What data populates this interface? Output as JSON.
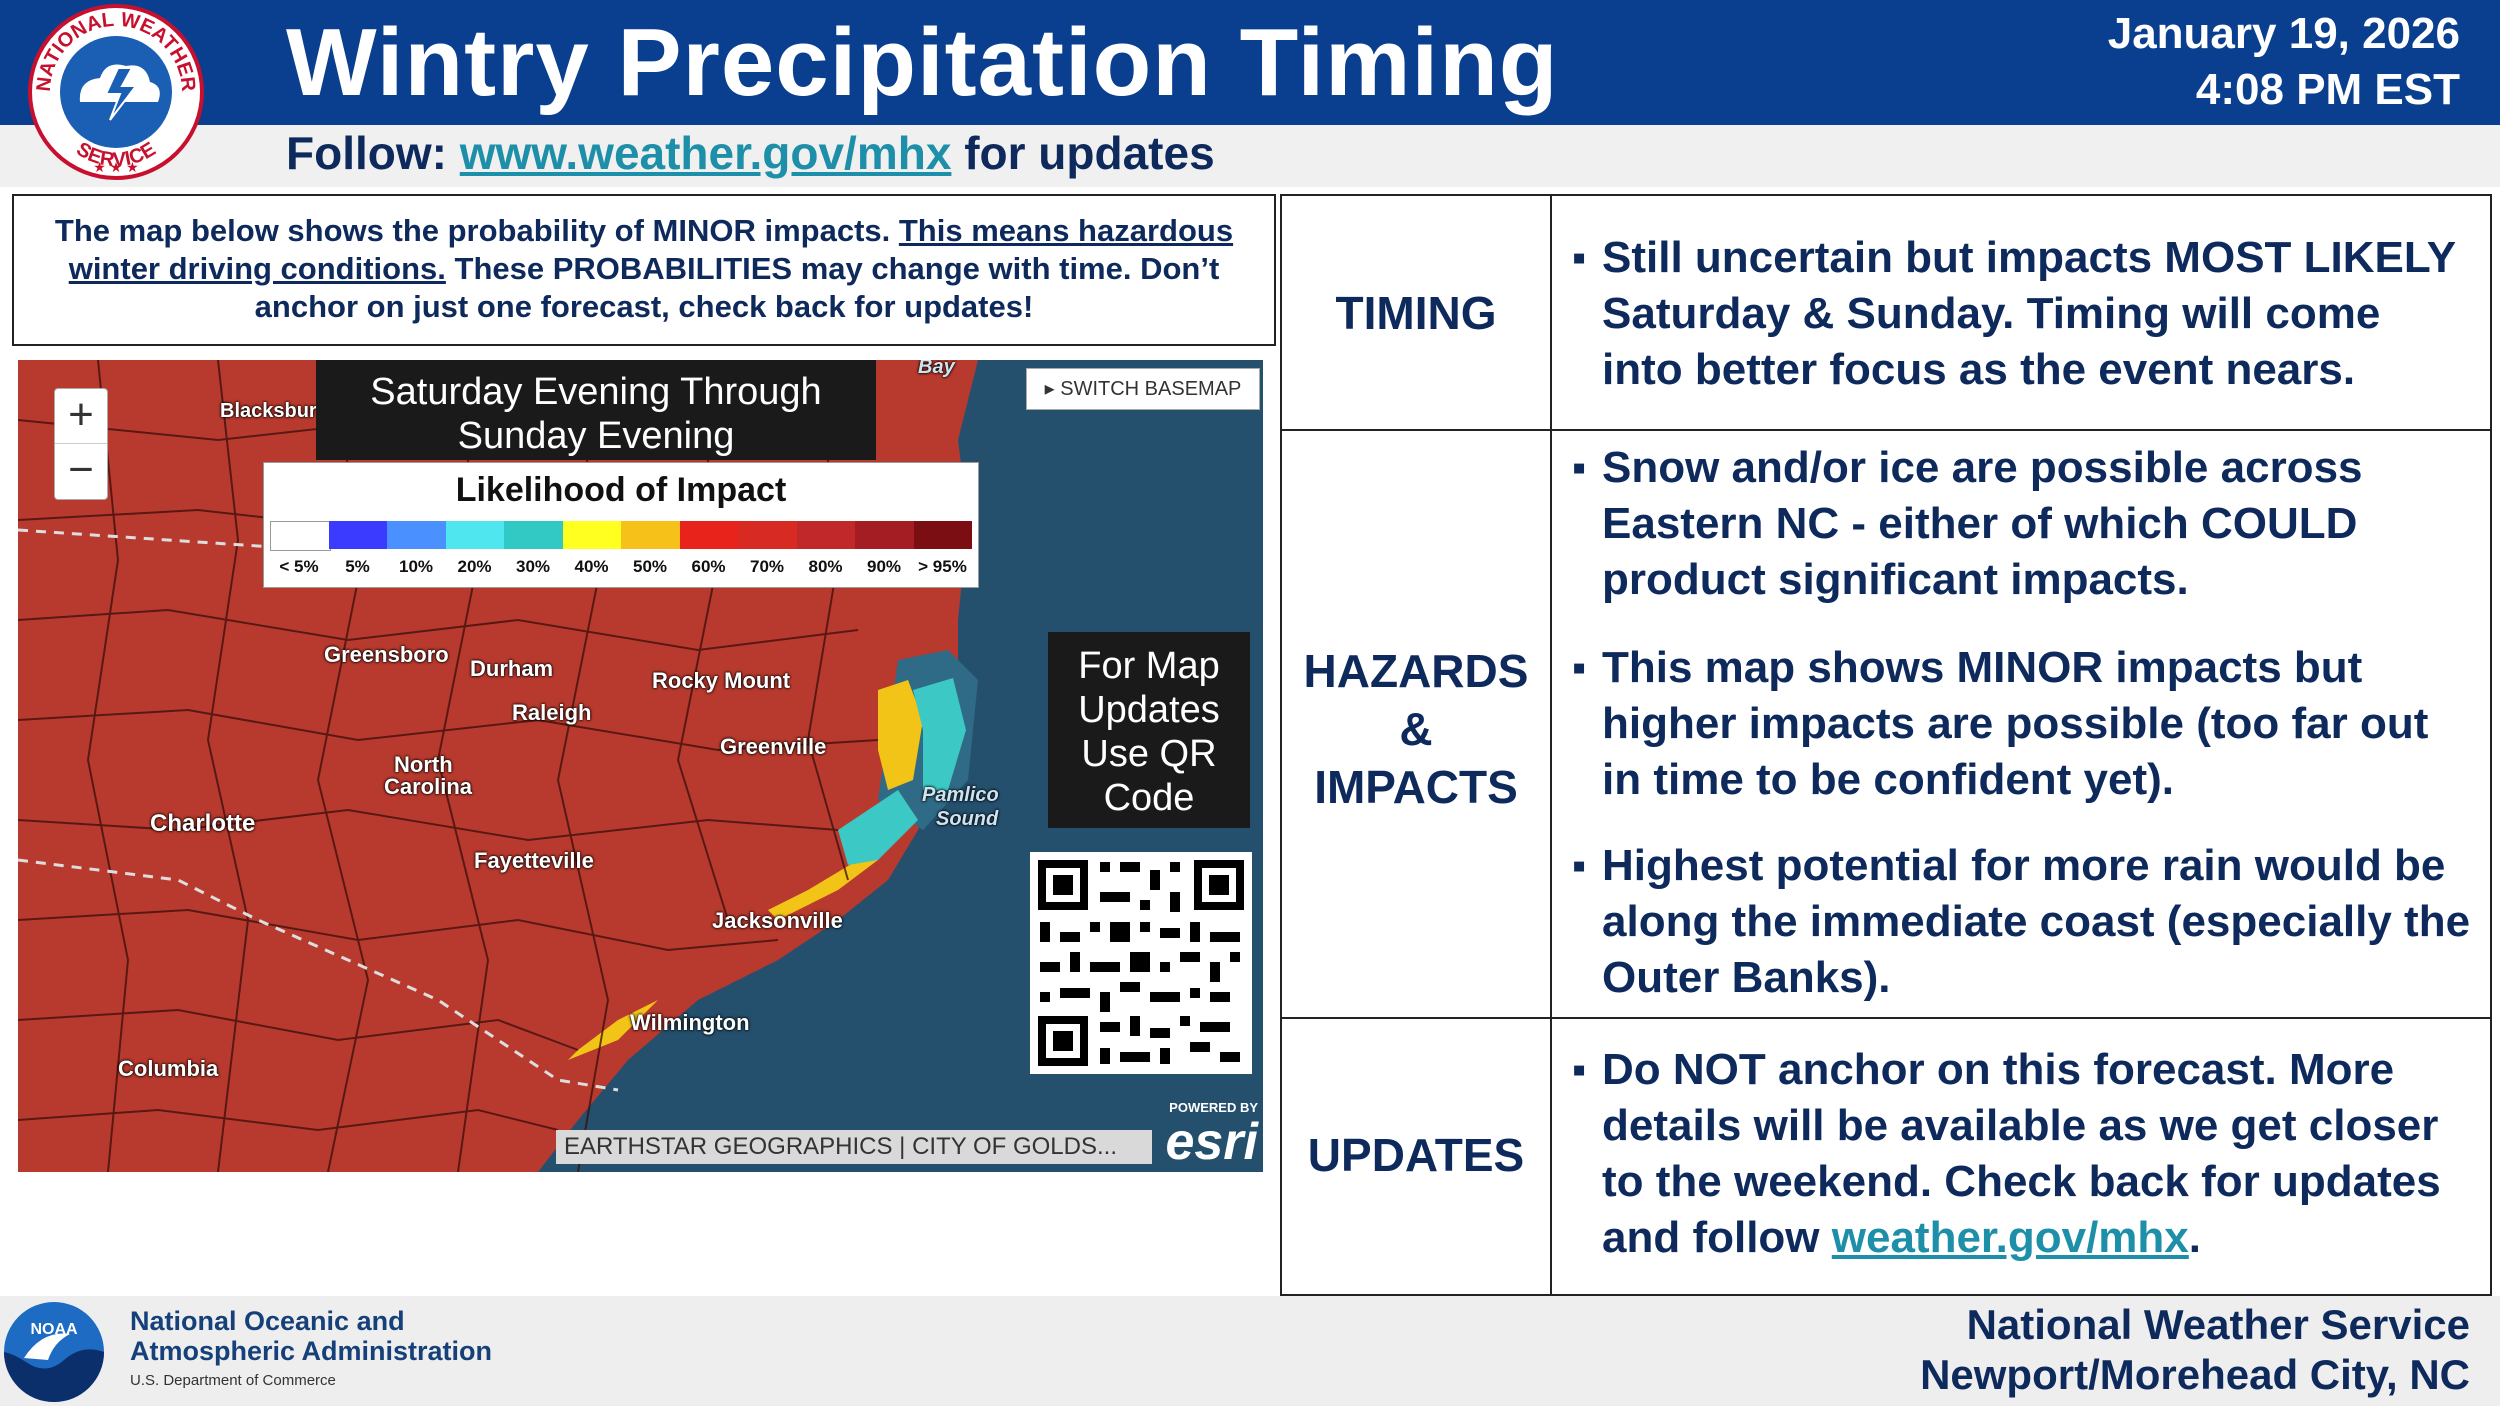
{
  "header": {
    "title": "Wintry Precipitation Timing",
    "date": "January 19, 2026",
    "time": "4:08 PM EST",
    "follow_prefix": "Follow:",
    "follow_link": "www.weather.gov/mhx",
    "follow_suffix": "for updates",
    "logo_text": "NATIONAL WEATHER SERVICE"
  },
  "intro": {
    "part1": "The map below shows the probability of MINOR impacts. ",
    "underlined": "This means hazardous winter driving conditions.",
    "part2": " These PROBABILITIES may change with time. Don’t anchor on just one forecast, check back for updates!"
  },
  "map": {
    "title_line1": "Saturday Evening Through",
    "title_line2": "Sunday Evening",
    "legend_title": "Likelihood of Impact",
    "legend_ticks": [
      "< 5%",
      "5%",
      "10%",
      "20%",
      "30%",
      "40%",
      "50%",
      "60%",
      "70%",
      "80%",
      "90%",
      "> 95%"
    ],
    "legend_colors": [
      "#ffffff",
      "#3b3bff",
      "#4a90ff",
      "#4fe6f0",
      "#32c9c4",
      "#ffff20",
      "#f6c21a",
      "#e8231b",
      "#d62a22",
      "#c0282a",
      "#a31d22",
      "#7a0e12"
    ],
    "switch_basemap": "SWITCH BASEMAP",
    "zoom_in": "+",
    "zoom_out": "−",
    "qr_line1": "For Map",
    "qr_line2": "Updates",
    "qr_line3": "Use QR",
    "qr_line4": "Code",
    "attribution": "EARTHSTAR GEOGRAPHICS | CITY OF GOLDS...",
    "esri_powered": "POWERED BY",
    "esri": "esri",
    "cities": {
      "blacksburg": "Blacksburg",
      "greensboro": "Greensboro",
      "durham": "Durham",
      "raleigh": "Raleigh",
      "rocky_mount": "Rocky Mount",
      "greenville": "Greenville",
      "north_carolina_1": "North",
      "north_carolina_2": "Carolina",
      "charlotte": "Charlotte",
      "fayetteville": "Fayetteville",
      "jacksonville": "Jacksonville",
      "wilmington": "Wilmington",
      "columbia": "Columbia",
      "pamlico1": "Pamlico",
      "pamlico2": "Sound",
      "bay": "Bay"
    }
  },
  "table": {
    "rows": [
      {
        "label": "TIMING",
        "bullets": [
          "Still uncertain but impacts MOST LIKELY Saturday & Sunday. Timing will come into better focus as the event nears."
        ]
      },
      {
        "label_line1": "HAZARDS",
        "label_line2": "&",
        "label_line3": "IMPACTS",
        "bullets": [
          "Snow and/or ice are possible across Eastern NC - either of which COULD product significant impacts.",
          "This map shows MINOR impacts but higher impacts are possible (too far out in time to be confident yet).",
          "Highest potential for more rain would be along the immediate coast (especially the Outer Banks)."
        ]
      },
      {
        "label": "UPDATES",
        "bullet_text": "Do NOT anchor on this forecast. More details will be available as we get closer to the weekend. Check back for updates and follow ",
        "bullet_link": "weather.gov/mhx",
        "bullet_end": "."
      }
    ]
  },
  "footer": {
    "noaa_line1": "National Oceanic and",
    "noaa_line2": "Atmospheric Administration",
    "noaa_dept": "U.S. Department of Commerce",
    "noaa_logo_text": "NOAA",
    "office_line1": "National Weather Service",
    "office_line2": "Newport/Morehead City, NC"
  },
  "colors": {
    "header_blue": "#0a3f8f",
    "navy_text": "#0e2a5c",
    "link_teal": "#1e8fa8"
  }
}
